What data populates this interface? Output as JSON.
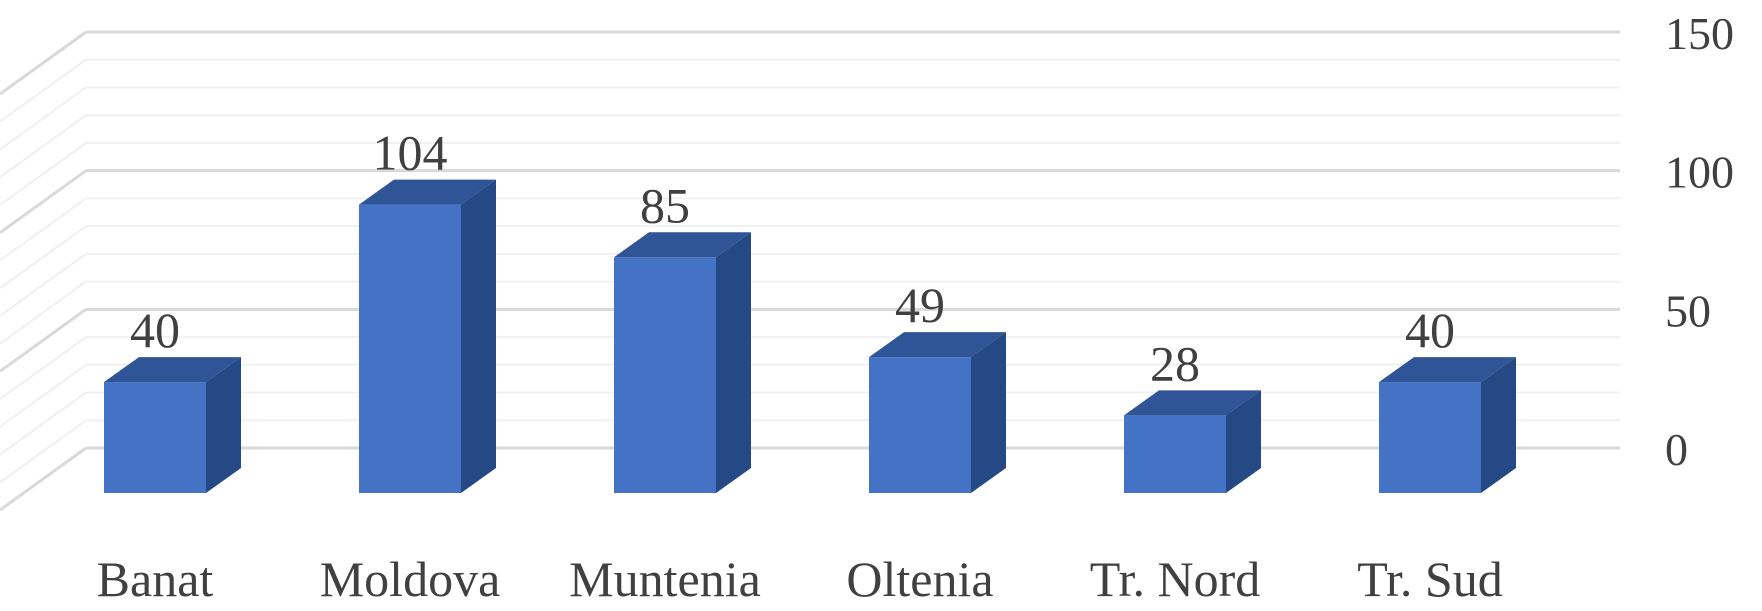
{
  "chart_data": {
    "type": "bar",
    "style": "3d-column",
    "categories": [
      "Banat",
      "Moldova",
      "Muntenia",
      "Oltenia",
      "Tr. Nord",
      "Tr. Sud"
    ],
    "values": [
      40,
      104,
      85,
      49,
      28,
      40
    ],
    "data_labels": [
      "40",
      "104",
      "85",
      "49",
      "28",
      "40"
    ],
    "title": "",
    "xlabel": "",
    "ylabel": "",
    "ylim": [
      0,
      150
    ],
    "yticks": [
      0,
      50,
      100,
      150
    ],
    "ytick_labels": [
      "0",
      "50",
      "100",
      "150"
    ],
    "y_axis_side": "right",
    "grid": true,
    "legend": "none",
    "colors": {
      "bar_front": "#4472C4",
      "bar_top": "#2F5597",
      "bar_side": "#244985",
      "grid_major": "#D9D9D9",
      "grid_minor": "#F0F0F0",
      "text": "#404040"
    }
  }
}
